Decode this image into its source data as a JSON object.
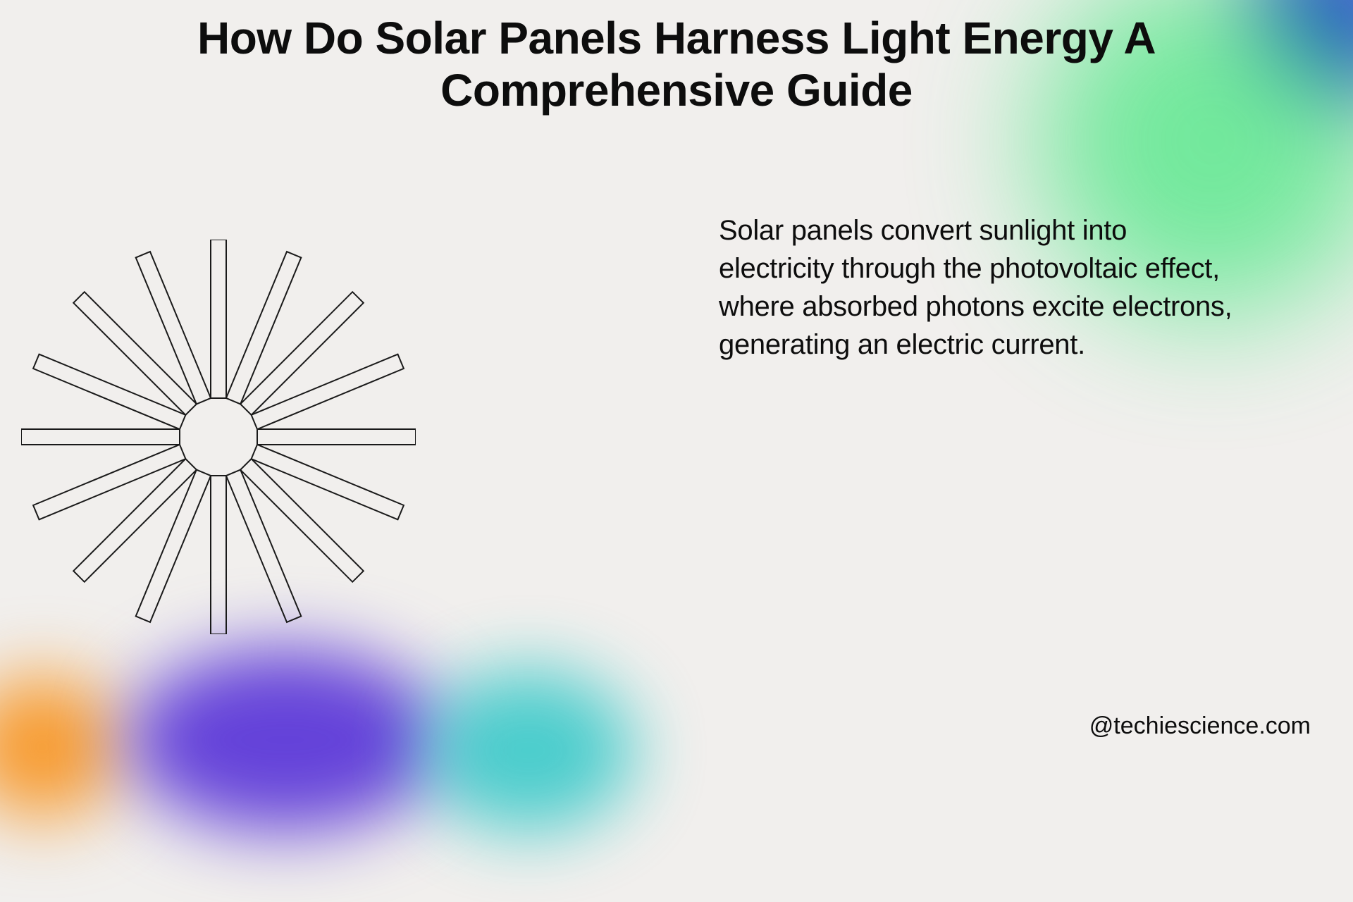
{
  "title": "How Do Solar Panels Harness Light Energy A Comprehensive Guide",
  "body_text": "Solar panels convert sunlight into electricity through the photovoltaic effect, where absorbed photons excite electrons, generating an electric current.",
  "attribution": "@techiescience.com",
  "colors": {
    "background": "#f1efed",
    "text": "#0d0d0d",
    "gradient_blue": "#2a3fd6",
    "gradient_green": "#3de67a",
    "blob_orange": "#f79a2e",
    "blob_purple": "#6442d9",
    "blob_teal": "#2ec7c7",
    "sunburst_stroke": "#1a1a1a"
  },
  "sunburst": {
    "type": "radial-rays",
    "ray_count": 16,
    "inner_radius": 55,
    "outer_radius": 280,
    "ray_width": 22,
    "stroke_width": 2,
    "fill": "none"
  },
  "typography": {
    "title_fontsize": 64,
    "title_weight": 700,
    "body_fontsize": 40,
    "body_weight": 500,
    "attribution_fontsize": 34
  }
}
